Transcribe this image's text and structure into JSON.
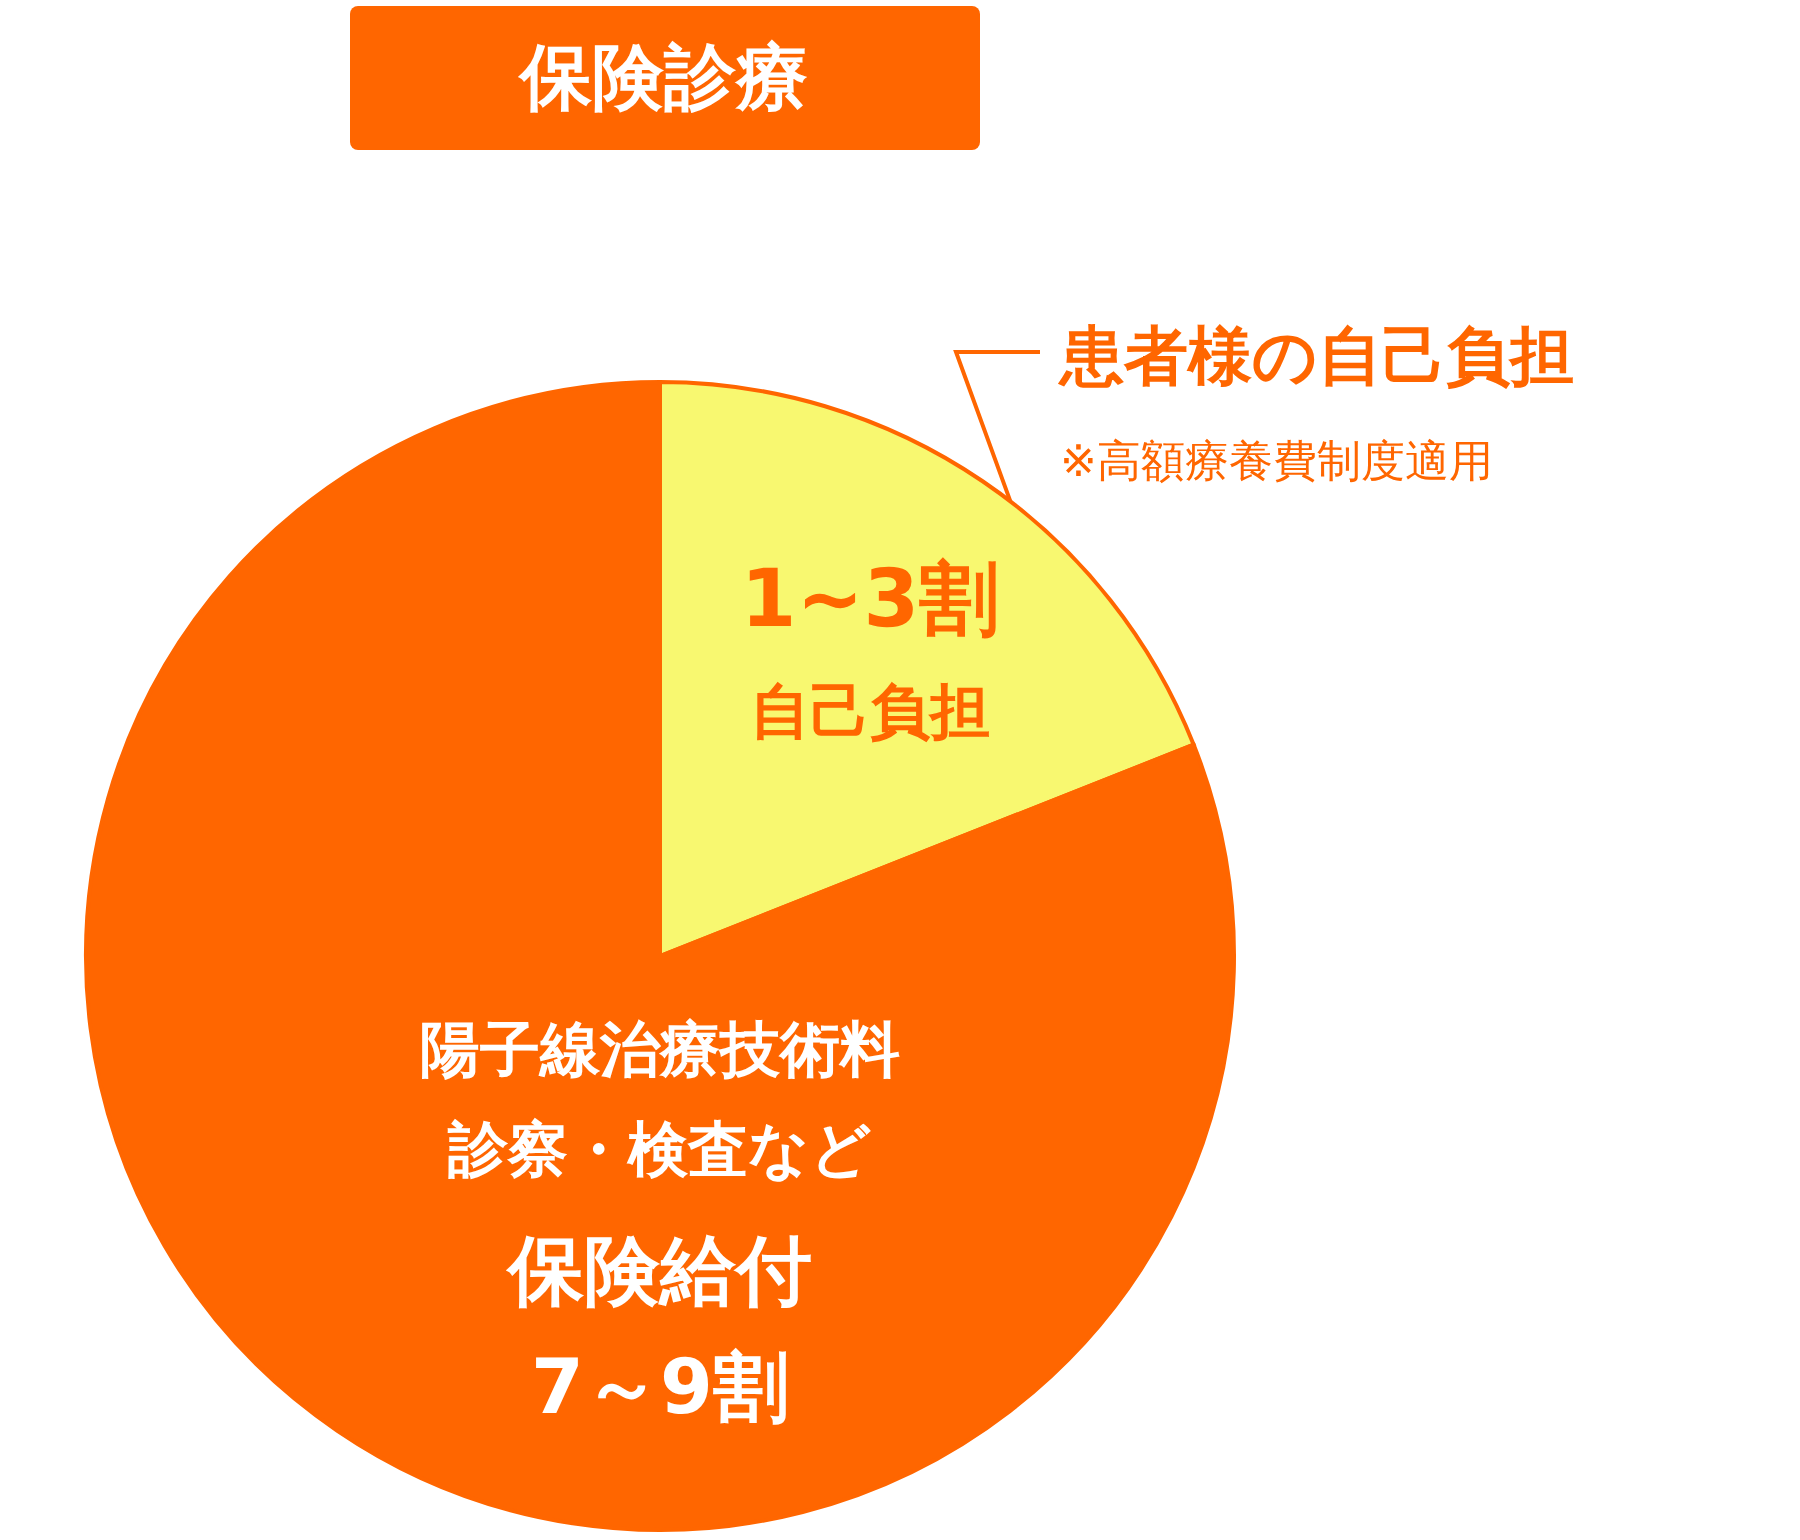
{
  "chart_data": {
    "type": "pie",
    "title": "保険診療",
    "categories": [
      "自己負担",
      "保険給付"
    ],
    "values": [
      19,
      81
    ],
    "colors": [
      "#f8f870",
      "#ff6600"
    ],
    "annotations": [
      "患者様の自己負担",
      "※高額療養費制度適用",
      "陽子線治療技術料",
      "診察・検査など",
      "1~3割",
      "7～9割"
    ]
  }
}
